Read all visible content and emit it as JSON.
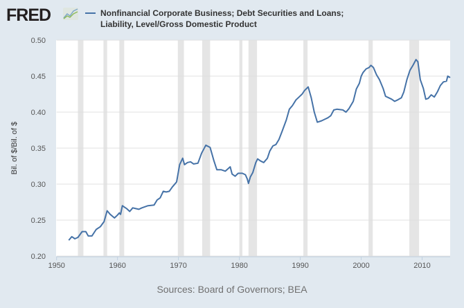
{
  "header": {
    "logo": "FRED",
    "logo_icon": "chart-trend-icon"
  },
  "chart_data": {
    "type": "line",
    "title": "Nonfinancial Corporate Business; Debt Securities and Loans; Liability, Level/Gross Domestic Product",
    "ylabel": "Bil. of $/Bil. of $",
    "xlabel": "",
    "xlim": [
      1950,
      2014.6
    ],
    "ylim": [
      0.2,
      0.5
    ],
    "xticks": [
      "1950",
      "1960",
      "1970",
      "1980",
      "1990",
      "2000",
      "2010"
    ],
    "yticks": [
      "0.20",
      "0.25",
      "0.30",
      "0.35",
      "0.40",
      "0.45",
      "0.50"
    ],
    "grid": true,
    "legend_position": "top",
    "recessions": [
      [
        1953.5,
        1954.4
      ],
      [
        1957.7,
        1958.3
      ],
      [
        1960.3,
        1961.1
      ],
      [
        1969.9,
        1970.9
      ],
      [
        1973.9,
        1975.2
      ],
      [
        1980.0,
        1980.5
      ],
      [
        1981.5,
        1982.9
      ],
      [
        1990.5,
        1991.2
      ],
      [
        2001.2,
        2001.9
      ],
      [
        2007.9,
        2009.5
      ]
    ],
    "series": [
      {
        "name": "Nonfinancial Corporate Business; Debt Securities and Loans; Liability, Level/Gross Domestic Product",
        "color": "#4572a7",
        "x": [
          1952.0,
          1952.5,
          1953,
          1953.5,
          1954.2,
          1954.8,
          1955.2,
          1955.8,
          1956.5,
          1957.2,
          1957.8,
          1958.3,
          1958.8,
          1959.5,
          1960.0,
          1960.3,
          1960.5,
          1960.8,
          1961.5,
          1962.0,
          1962.5,
          1963,
          1963.5,
          1964,
          1965,
          1966,
          1966.5,
          1967,
          1967.5,
          1968,
          1968.5,
          1969,
          1969.7,
          1970.2,
          1970.7,
          1971,
          1971.5,
          1972,
          1972.5,
          1973.2,
          1973.8,
          1974.5,
          1975.2,
          1975.8,
          1976.3,
          1977,
          1977.7,
          1978.5,
          1978.8,
          1979.3,
          1979.8,
          1980.5,
          1981,
          1981.3,
          1981.5,
          1981.8,
          1982.2,
          1982.7,
          1983,
          1983.5,
          1984,
          1984.6,
          1985,
          1985.5,
          1986,
          1986.5,
          1987,
          1987.7,
          1988.2,
          1988.7,
          1989.3,
          1989.8,
          1990.3,
          1990.7,
          1991.3,
          1991.8,
          1992.3,
          1992.8,
          1993.5,
          1994,
          1994.5,
          1995,
          1995.5,
          1996,
          1997,
          1997.5,
          1998,
          1998.7,
          1999.2,
          1999.7,
          2000,
          2000.3,
          2000.8,
          2001.3,
          2001.6,
          2002,
          2002.5,
          2003,
          2003.6,
          2004,
          2004.5,
          2005,
          2005.5,
          2006,
          2006.6,
          2007,
          2007.5,
          2008,
          2008.5,
          2009,
          2009.3,
          2009.7,
          2010.2,
          2010.6,
          2011,
          2011.5,
          2012,
          2012.5,
          2013,
          2013.5,
          2014,
          2014.2,
          2014.6
        ],
        "values": [
          0.222,
          0.227,
          0.224,
          0.226,
          0.234,
          0.234,
          0.228,
          0.228,
          0.237,
          0.241,
          0.248,
          0.263,
          0.258,
          0.253,
          0.257,
          0.26,
          0.258,
          0.27,
          0.266,
          0.262,
          0.267,
          0.266,
          0.265,
          0.267,
          0.27,
          0.271,
          0.278,
          0.281,
          0.29,
          0.289,
          0.29,
          0.296,
          0.303,
          0.327,
          0.336,
          0.327,
          0.33,
          0.331,
          0.328,
          0.329,
          0.343,
          0.354,
          0.351,
          0.333,
          0.32,
          0.32,
          0.318,
          0.324,
          0.314,
          0.311,
          0.315,
          0.315,
          0.313,
          0.307,
          0.301,
          0.31,
          0.316,
          0.33,
          0.335,
          0.332,
          0.33,
          0.336,
          0.346,
          0.353,
          0.355,
          0.362,
          0.373,
          0.389,
          0.404,
          0.409,
          0.417,
          0.421,
          0.425,
          0.43,
          0.435,
          0.42,
          0.4,
          0.386,
          0.388,
          0.39,
          0.392,
          0.395,
          0.403,
          0.404,
          0.403,
          0.4,
          0.405,
          0.415,
          0.432,
          0.44,
          0.45,
          0.455,
          0.46,
          0.462,
          0.465,
          0.462,
          0.452,
          0.445,
          0.433,
          0.422,
          0.42,
          0.418,
          0.415,
          0.417,
          0.42,
          0.428,
          0.445,
          0.458,
          0.465,
          0.473,
          0.47,
          0.445,
          0.433,
          0.418,
          0.419,
          0.424,
          0.421,
          0.428,
          0.437,
          0.442,
          0.443,
          0.45,
          0.448
        ]
      }
    ],
    "source": "Sources: Board of Governors; BEA"
  }
}
